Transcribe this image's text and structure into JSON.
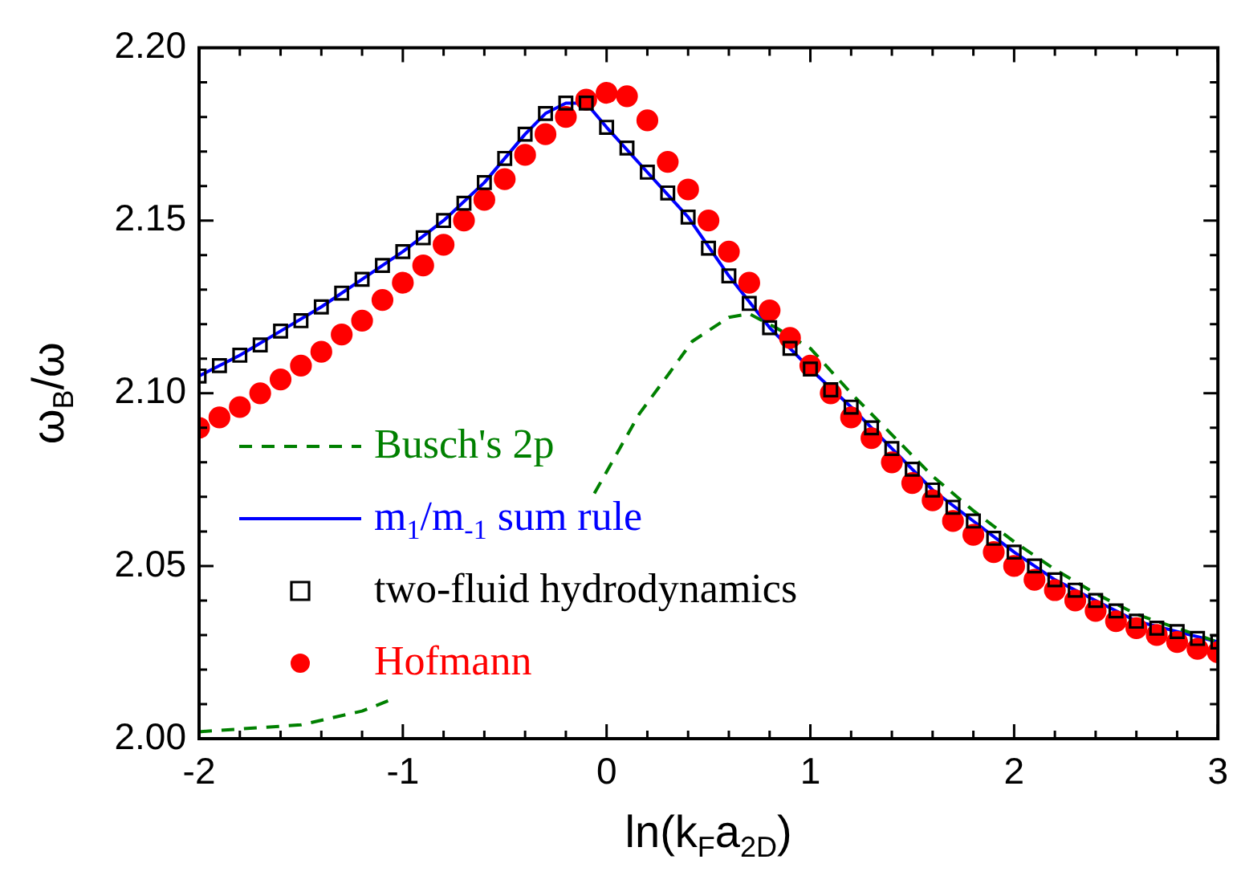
{
  "chart_data": {
    "type": "line",
    "xlabel": "ln(k$_{F}$a$_{2D}$)",
    "ylabel": "ω$_{B}$/ω",
    "xlim": [
      -2,
      3
    ],
    "xticks": [
      -2,
      {
        "value": -1.8,
        "label": null
      },
      {
        "value": -1.6,
        "label": null
      },
      {
        "value": -1.4,
        "label": null
      },
      {
        "value": -1.2,
        "label": null
      },
      -1,
      {
        "value": -0.8,
        "label": null
      },
      {
        "value": -0.6,
        "label": null
      },
      {
        "value": -0.4,
        "label": null
      },
      {
        "value": -0.2,
        "label": null
      },
      0,
      {
        "value": 0.2,
        "label": null
      },
      {
        "value": 0.4,
        "label": null
      },
      {
        "value": 0.6,
        "label": null
      },
      {
        "value": 0.8,
        "label": null
      },
      1,
      {
        "value": 1.2,
        "label": null
      },
      {
        "value": 1.4,
        "label": null
      },
      {
        "value": 1.6,
        "label": null
      },
      {
        "value": 1.8,
        "label": null
      },
      2,
      {
        "value": 2.2,
        "label": null
      },
      {
        "value": 2.4,
        "label": null
      },
      {
        "value": 2.6,
        "label": null
      },
      {
        "value": 2.8,
        "label": null
      },
      3
    ],
    "ylim": [
      2.0,
      2.2
    ],
    "yticks": [
      {
        "value": 2.0,
        "label": "2.00"
      },
      {
        "value": 2.01,
        "label": null
      },
      {
        "value": 2.02,
        "label": null
      },
      {
        "value": 2.03,
        "label": null
      },
      {
        "value": 2.04,
        "label": null
      },
      {
        "value": 2.05,
        "label": "2.05"
      },
      {
        "value": 2.06,
        "label": null
      },
      {
        "value": 2.07,
        "label": null
      },
      {
        "value": 2.08,
        "label": null
      },
      {
        "value": 2.09,
        "label": null
      },
      {
        "value": 2.1,
        "label": "2.10"
      },
      {
        "value": 2.11,
        "label": null
      },
      {
        "value": 2.12,
        "label": null
      },
      {
        "value": 2.13,
        "label": null
      },
      {
        "value": 2.14,
        "label": null
      },
      {
        "value": 2.15,
        "label": "2.15"
      },
      {
        "value": 2.16,
        "label": null
      },
      {
        "value": 2.17,
        "label": null
      },
      {
        "value": 2.18,
        "label": null
      },
      {
        "value": 2.19,
        "label": null
      },
      {
        "value": 2.2,
        "label": "2.20"
      }
    ],
    "legend": "bottom left",
    "series": [
      {
        "name": "Busch's 2p",
        "type": "line",
        "color": "#008000",
        "marker": "none",
        "line_style": "dashed",
        "x": [
          -2,
          -1.5,
          -1.2,
          -1.07,
          -0.5,
          -0.06,
          0.16,
          0.31,
          0.42,
          0.6,
          0.7,
          0.83,
          1,
          1.2,
          1.4,
          1.6,
          1.8,
          2,
          2.2,
          2.4,
          2.6,
          2.8,
          3
        ],
        "values": [
          2.002,
          2.004,
          2.008,
          2.011,
          null,
          2.071,
          2.094,
          2.106,
          2.115,
          2.122,
          2.123,
          2.119,
          2.113,
          2.1,
          2.088,
          2.076,
          2.066,
          2.057,
          2.049,
          2.042,
          2.036,
          2.032,
          2.028
        ]
      },
      {
        "name": "m$_{1}$/m$_{-1}$ sum rule",
        "type": "line",
        "color": "#0000ff",
        "marker": "none",
        "line_style": "solid",
        "x": [
          -2,
          -1.8,
          -1.6,
          -1.4,
          -1.2,
          -1,
          -0.8,
          -0.6,
          -0.4,
          -0.3,
          -0.2,
          -0.1,
          0,
          0.2,
          0.4,
          0.6,
          0.8,
          1,
          1.2,
          1.4,
          1.6,
          1.8,
          2,
          2.2,
          2.4,
          2.6,
          2.8,
          3
        ],
        "values": [
          2.105,
          2.111,
          2.118,
          2.125,
          2.133,
          2.141,
          2.15,
          2.161,
          2.175,
          2.181,
          2.184,
          2.184,
          2.177,
          2.164,
          2.151,
          2.134,
          2.119,
          2.107,
          2.096,
          2.084,
          2.072,
          2.063,
          2.054,
          2.046,
          2.04,
          2.034,
          2.031,
          2.028
        ]
      },
      {
        "name": "two-fluid hydrodynamics",
        "type": "scatter",
        "color": "#000000",
        "marker": "square",
        "x": [
          -2,
          -1.9,
          -1.8,
          -1.7,
          -1.6,
          -1.5,
          -1.4,
          -1.3,
          -1.2,
          -1.1,
          -1,
          -0.9,
          -0.8,
          -0.7,
          -0.6,
          -0.5,
          -0.4,
          -0.3,
          -0.2,
          -0.1,
          0,
          0.1,
          0.2,
          0.3,
          0.4,
          0.5,
          0.6,
          0.7,
          0.8,
          0.9,
          1,
          1.1,
          1.2,
          1.3,
          1.4,
          1.5,
          1.6,
          1.7,
          1.8,
          1.9,
          2,
          2.1,
          2.2,
          2.3,
          2.4,
          2.5,
          2.6,
          2.7,
          2.8,
          2.9,
          3
        ],
        "values": [
          2.105,
          2.108,
          2.111,
          2.114,
          2.118,
          2.121,
          2.125,
          2.129,
          2.133,
          2.137,
          2.141,
          2.145,
          2.15,
          2.155,
          2.161,
          2.168,
          2.175,
          2.181,
          2.184,
          2.184,
          2.177,
          2.171,
          2.164,
          2.158,
          2.151,
          2.142,
          2.134,
          2.126,
          2.119,
          2.113,
          2.107,
          2.101,
          2.096,
          2.09,
          2.084,
          2.078,
          2.072,
          2.067,
          2.063,
          2.058,
          2.054,
          2.05,
          2.046,
          2.043,
          2.04,
          2.037,
          2.034,
          2.032,
          2.031,
          2.029,
          2.028
        ]
      },
      {
        "name": "Hofmann",
        "type": "scatter",
        "color": "#ff0000",
        "marker": "circle",
        "x": [
          -2,
          -1.9,
          -1.8,
          -1.7,
          -1.6,
          -1.5,
          -1.4,
          -1.3,
          -1.2,
          -1.1,
          -1,
          -0.9,
          -0.8,
          -0.7,
          -0.6,
          -0.5,
          -0.4,
          -0.3,
          -0.2,
          -0.1,
          0,
          0.1,
          0.2,
          0.3,
          0.4,
          0.5,
          0.6,
          0.7,
          0.8,
          0.9,
          1,
          1.1,
          1.2,
          1.3,
          1.4,
          1.5,
          1.6,
          1.7,
          1.8,
          1.9,
          2,
          2.1,
          2.2,
          2.3,
          2.4,
          2.5,
          2.6,
          2.7,
          2.8,
          2.9,
          3
        ],
        "values": [
          2.09,
          2.093,
          2.096,
          2.1,
          2.104,
          2.108,
          2.112,
          2.117,
          2.121,
          2.127,
          2.132,
          2.137,
          2.143,
          2.15,
          2.156,
          2.162,
          2.169,
          2.175,
          2.18,
          2.185,
          2.187,
          2.186,
          2.179,
          2.167,
          2.159,
          2.15,
          2.141,
          2.132,
          2.124,
          2.116,
          2.108,
          2.1,
          2.093,
          2.087,
          2.08,
          2.074,
          2.069,
          2.063,
          2.059,
          2.054,
          2.05,
          2.046,
          2.043,
          2.04,
          2.037,
          2.034,
          2.032,
          2.03,
          2.028,
          2.026,
          2.025
        ]
      }
    ]
  }
}
